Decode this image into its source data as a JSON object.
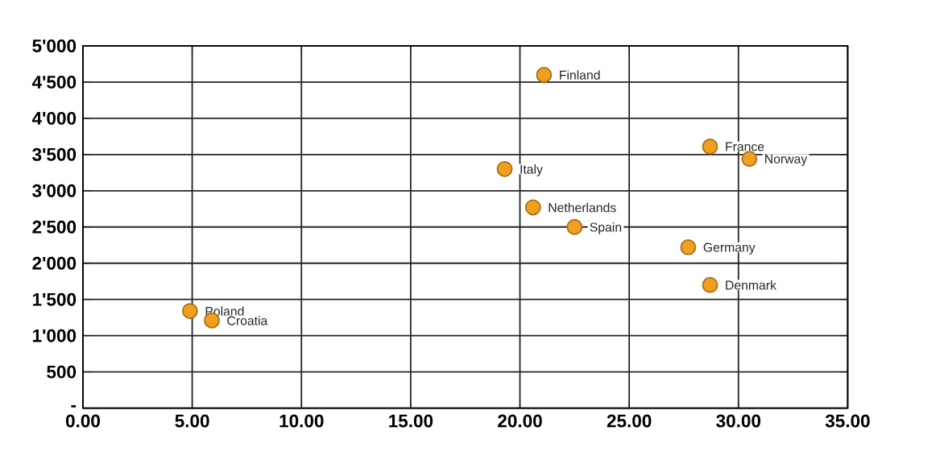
{
  "chart_data": {
    "type": "scatter",
    "x": [
      21.1,
      19.3,
      28.7,
      30.5,
      20.6,
      22.5,
      27.7,
      28.7,
      4.9,
      5.9
    ],
    "values": [
      4600,
      3300,
      3610,
      3440,
      2770,
      2500,
      2220,
      1700,
      1340,
      1210
    ],
    "color": "#f0a020",
    "marker": "circle",
    "grid": true,
    "xlim": [
      0,
      35
    ],
    "ylim": [
      0,
      5000
    ],
    "xticks": [
      {
        "value": 0,
        "label": "0.00"
      },
      {
        "value": 5,
        "label": "5.00"
      },
      {
        "value": 10,
        "label": "10.00"
      },
      {
        "value": 15,
        "label": "15.00"
      },
      {
        "value": 20,
        "label": "20.00"
      },
      {
        "value": 25,
        "label": "25.00"
      },
      {
        "value": 30,
        "label": "30.00"
      },
      {
        "value": 35,
        "label": "35.00"
      }
    ],
    "yticks": [
      {
        "value": 0,
        "label": "-"
      },
      500,
      {
        "value": 1000,
        "label": "1'000"
      },
      {
        "value": 1500,
        "label": "1'500"
      },
      {
        "value": 2000,
        "label": "2'000"
      },
      {
        "value": 2500,
        "label": "2'500"
      },
      {
        "value": 3000,
        "label": "3'000"
      },
      {
        "value": 3500,
        "label": "3'500"
      },
      {
        "value": 4000,
        "label": "4'000"
      },
      {
        "value": 4500,
        "label": "4'500"
      },
      {
        "value": 5000,
        "label": "5'000"
      }
    ],
    "annotations": [
      {
        "text": "Finland",
        "x": 21.1,
        "y": 4600
      },
      {
        "text": "Italy",
        "x": 19.3,
        "y": 3300
      },
      {
        "text": "France",
        "x": 28.7,
        "y": 3610
      },
      {
        "text": "Norway",
        "x": 30.5,
        "y": 3440
      },
      {
        "text": "Netherlands",
        "x": 20.6,
        "y": 2770
      },
      {
        "text": "Spain",
        "x": 22.5,
        "y": 2500
      },
      {
        "text": "Germany",
        "x": 27.7,
        "y": 2220
      },
      {
        "text": "Denmark",
        "x": 28.7,
        "y": 1700
      },
      {
        "text": "Poland",
        "x": 4.9,
        "y": 1340
      },
      {
        "text": "Croatia",
        "x": 5.9,
        "y": 1210
      }
    ]
  }
}
